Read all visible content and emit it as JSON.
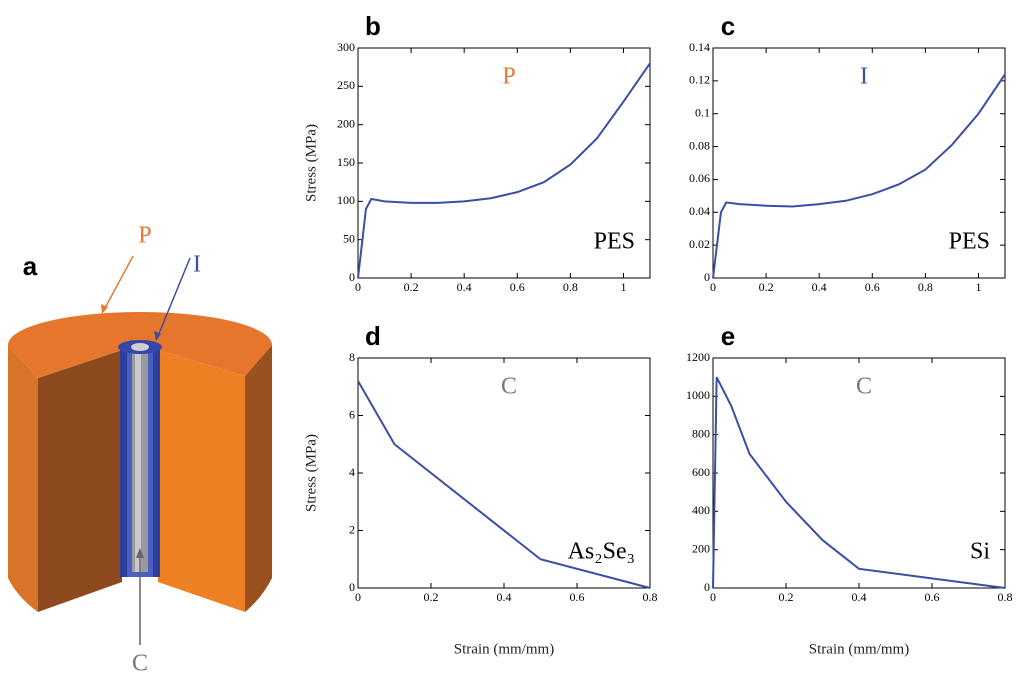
{
  "panel_a": {
    "label": "a",
    "outer": "P",
    "interlayer": "I",
    "core": "C",
    "outer_color": "#e8782f",
    "interlayer_color": "#3a4fa3",
    "core_color": "#777777"
  },
  "chart_data": [
    {
      "type": "line",
      "panel": "b",
      "annotation": "P",
      "annotation_color": "#e8782f",
      "material": "PES",
      "ylabel": "Stress (MPa)",
      "color": "#3b4ea6",
      "x": [
        0,
        0.03,
        0.05,
        0.1,
        0.2,
        0.3,
        0.4,
        0.5,
        0.6,
        0.7,
        0.8,
        0.9,
        1.0,
        1.1
      ],
      "y": [
        0,
        90,
        103,
        100,
        98,
        98,
        100,
        104,
        112,
        125,
        148,
        182,
        230,
        280
      ],
      "xlim": [
        0,
        1.1
      ],
      "xticks": [
        0,
        0.2,
        0.4,
        0.6,
        0.8,
        1
      ],
      "ylim": [
        0,
        300
      ],
      "yticks": [
        0,
        50,
        100,
        150,
        200,
        250,
        300
      ]
    },
    {
      "type": "line",
      "panel": "c",
      "annotation": "I",
      "annotation_color": "#3a4fa3",
      "material": "PES",
      "color": "#3b4ea6",
      "x": [
        0,
        0.03,
        0.05,
        0.1,
        0.2,
        0.3,
        0.4,
        0.5,
        0.6,
        0.7,
        0.8,
        0.9,
        1.0,
        1.1
      ],
      "y": [
        0,
        0.04,
        0.046,
        0.045,
        0.044,
        0.0435,
        0.045,
        0.047,
        0.051,
        0.057,
        0.066,
        0.081,
        0.1,
        0.124
      ],
      "xlim": [
        0,
        1.1
      ],
      "xticks": [
        0,
        0.2,
        0.4,
        0.6,
        0.8,
        1
      ],
      "ylim": [
        0,
        0.14
      ],
      "yticks": [
        0,
        0.02,
        0.04,
        0.06,
        0.08,
        0.1,
        0.12,
        0.14
      ]
    },
    {
      "type": "line",
      "panel": "d",
      "annotation": "C",
      "annotation_color": "#777777",
      "material": "As₂Se₃",
      "ylabel": "Stress (MPa)",
      "xlabel": "Strain (mm/mm)",
      "color": "#3b4ea6",
      "x": [
        0,
        0.1,
        0.5,
        0.8
      ],
      "y": [
        7.2,
        5,
        1,
        0
      ],
      "xlim": [
        0,
        0.8
      ],
      "xticks": [
        0,
        0.2,
        0.4,
        0.6,
        0.8
      ],
      "ylim": [
        0,
        8
      ],
      "yticks": [
        0,
        2,
        4,
        6,
        8
      ]
    },
    {
      "type": "line",
      "panel": "e",
      "annotation": "C",
      "annotation_color": "#777777",
      "material": "Si",
      "xlabel": "Strain (mm/mm)",
      "color": "#3b4ea6",
      "x": [
        0,
        0.01,
        0.05,
        0.1,
        0.2,
        0.3,
        0.4,
        0.8
      ],
      "y": [
        0,
        1100,
        950,
        700,
        450,
        250,
        100,
        0
      ],
      "xlim": [
        0,
        0.8
      ],
      "xticks": [
        0,
        0.2,
        0.4,
        0.6,
        0.8
      ],
      "ylim": [
        0,
        1200
      ],
      "yticks": [
        0,
        200,
        400,
        600,
        800,
        1000,
        1200
      ]
    }
  ]
}
